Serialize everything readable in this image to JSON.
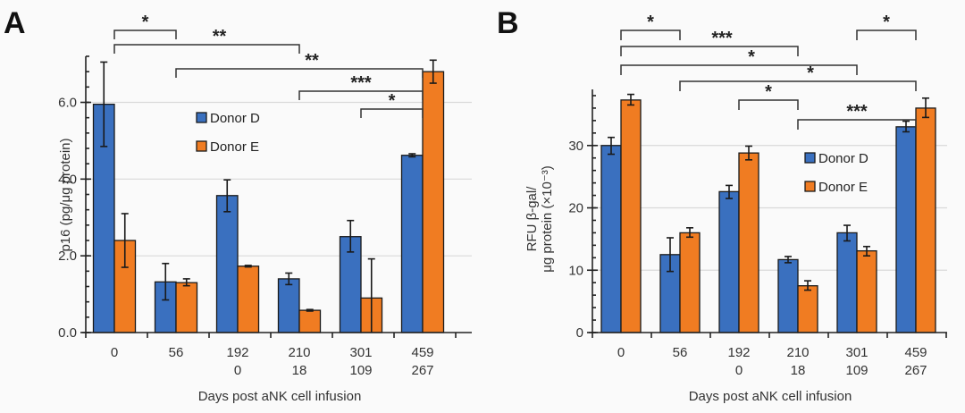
{
  "colors": {
    "donor_d": "#3a70bf",
    "donor_e": "#f07c22"
  },
  "chart_data": [
    {
      "panel": "A",
      "type": "bar",
      "title": "",
      "xlabel": "Days post aNK cell infusion",
      "ylabel": "p16 (pg/μg protein)",
      "ylim": [
        0,
        7.2
      ],
      "yticks": [
        0,
        2,
        4,
        6
      ],
      "ytick_labels": [
        "0.0",
        "2.0",
        "4.0",
        "6.0"
      ],
      "yminor_step": 0.4,
      "grid": true,
      "categories": [
        [
          "0",
          ""
        ],
        [
          "56",
          ""
        ],
        [
          "192",
          "0"
        ],
        [
          "210",
          "18"
        ],
        [
          "301",
          "109"
        ],
        [
          "459",
          "267"
        ]
      ],
      "legend": {
        "placement": "upper-center",
        "entries": [
          "Donor D",
          "Donor E"
        ]
      },
      "series": [
        {
          "name": "Donor D",
          "values": [
            5.95,
            1.32,
            3.57,
            1.4,
            2.5,
            4.62
          ],
          "err_low": [
            4.85,
            0.85,
            3.15,
            1.25,
            2.1,
            4.58
          ],
          "err_high": [
            7.05,
            1.8,
            3.98,
            1.55,
            2.92,
            4.66
          ]
        },
        {
          "name": "Donor E",
          "values": [
            2.4,
            1.3,
            1.73,
            0.58,
            0.9,
            6.8
          ],
          "err_low": [
            1.7,
            1.22,
            1.71,
            0.56,
            0.0,
            6.5
          ],
          "err_high": [
            3.1,
            1.4,
            1.75,
            0.6,
            1.92,
            7.1
          ]
        }
      ],
      "significance": [
        {
          "from": 0,
          "to": 1,
          "label": "*",
          "level": 1
        },
        {
          "from": 0,
          "to": 3,
          "label": "**",
          "level": 2
        },
        {
          "from": 1,
          "to": 5,
          "label": "**",
          "level": 3
        },
        {
          "from": 3,
          "to": 5,
          "label": "***",
          "level": 4
        },
        {
          "from": 4,
          "to": 5,
          "label": "*",
          "level": 5
        }
      ]
    },
    {
      "panel": "B",
      "type": "bar",
      "title": "",
      "xlabel": "Days post aNK cell infusion",
      "ylabel_line1": "RFU β-gal/",
      "ylabel_line2": "μg protein (×10⁻³)",
      "ylim": [
        0,
        39
      ],
      "yticks": [
        0,
        10,
        20,
        30
      ],
      "ytick_labels": [
        "0",
        "10",
        "20",
        "30"
      ],
      "yminor_step": 2,
      "grid": true,
      "categories": [
        [
          "0",
          ""
        ],
        [
          "56",
          ""
        ],
        [
          "192",
          "0"
        ],
        [
          "210",
          "18"
        ],
        [
          "301",
          "109"
        ],
        [
          "459",
          "267"
        ]
      ],
      "legend": {
        "placement": "center-right",
        "entries": [
          "Donor D",
          "Donor E"
        ]
      },
      "series": [
        {
          "name": "Donor D",
          "values": [
            30,
            12.5,
            22.6,
            11.7,
            16,
            33
          ],
          "err_low": [
            28.6,
            9.8,
            21.5,
            11.2,
            14.7,
            32.2
          ],
          "err_high": [
            31.3,
            15.2,
            23.6,
            12.2,
            17.2,
            33.9
          ]
        },
        {
          "name": "Donor E",
          "values": [
            37.3,
            16,
            28.8,
            7.5,
            13.1,
            36
          ],
          "err_low": [
            36.5,
            15.3,
            27.7,
            6.8,
            12.3,
            34.5
          ],
          "err_high": [
            38.2,
            16.8,
            29.9,
            8.3,
            13.8,
            37.6
          ]
        }
      ],
      "significance": [
        {
          "from": 0,
          "to": 1,
          "label": "*",
          "level": 1
        },
        {
          "from": 4,
          "to": 5,
          "label": "*",
          "level": 1
        },
        {
          "from": 0,
          "to": 3,
          "label": "***",
          "level": 2
        },
        {
          "from": 0,
          "to": 4,
          "label": "*",
          "level": 3
        },
        {
          "from": 1,
          "to": 5,
          "label": "*",
          "level": 4
        },
        {
          "from": 2,
          "to": 3,
          "label": "*",
          "level": 5
        },
        {
          "from": 3,
          "to": 5,
          "label": "***",
          "level": 6
        }
      ]
    }
  ]
}
